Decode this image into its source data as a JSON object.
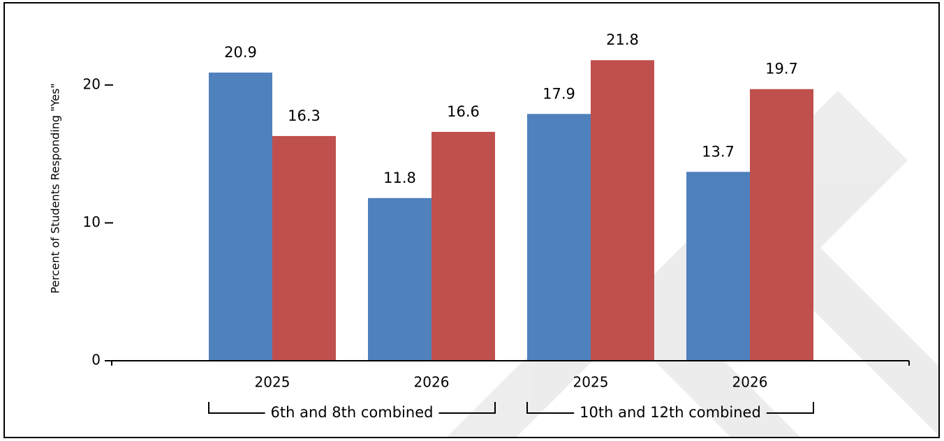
{
  "chart_data": {
    "type": "grouped_bar",
    "y_label": "Percent of Students Responding \"Yes\"",
    "categories": [
      "2025",
      "2026",
      "2025",
      "2026"
    ],
    "groups": [
      "6th and 8th combined",
      "10th and 12th combined"
    ],
    "series": [
      {
        "color": "#4f81bd",
        "values": [
          20.9,
          11.8,
          17.9,
          13.7
        ]
      },
      {
        "color": "#c0504d",
        "values": [
          16.3,
          16.6,
          21.8,
          19.7
        ]
      }
    ],
    "ylim": [
      0,
      25
    ],
    "yticks": [
      0,
      10,
      20
    ]
  }
}
